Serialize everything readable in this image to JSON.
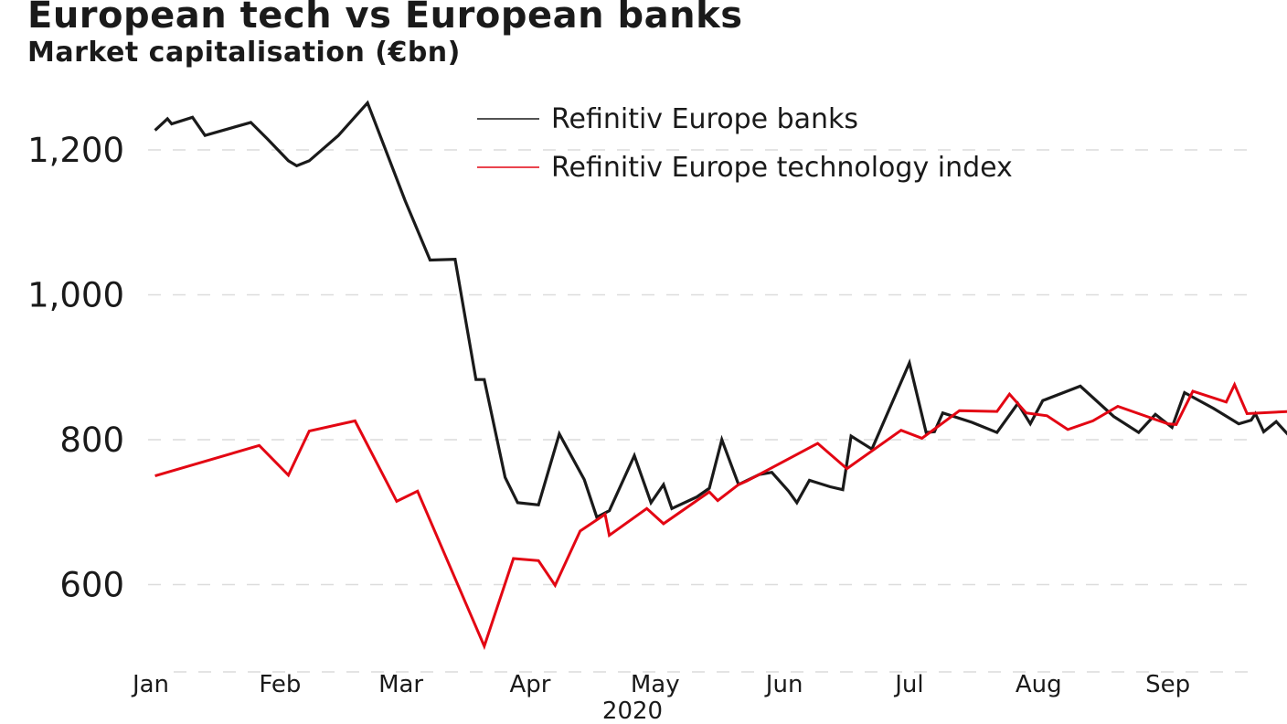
{
  "chart_data": {
    "type": "line",
    "title": "European tech vs European banks",
    "subtitle": "Market capitalisation (€bn)",
    "xlabel": "2020",
    "ylabel": "",
    "ylim": [
      480,
      1280
    ],
    "yticks": [
      {
        "value": 600,
        "label": "600"
      },
      {
        "value": 800,
        "label": "800"
      },
      {
        "value": 1000,
        "label": "1,000"
      },
      {
        "value": 1200,
        "label": "1,200"
      }
    ],
    "xlim": [
      0,
      264
    ],
    "xticks": [
      {
        "day": 0,
        "label": "Jan"
      },
      {
        "day": 31,
        "label": "Feb"
      },
      {
        "day": 60,
        "label": "Mar"
      },
      {
        "day": 91,
        "label": "Apr"
      },
      {
        "day": 121,
        "label": "May"
      },
      {
        "day": 152,
        "label": "Jun"
      },
      {
        "day": 182,
        "label": "Jul"
      },
      {
        "day": 213,
        "label": "Aug"
      },
      {
        "day": 244,
        "label": "Sep"
      }
    ],
    "grid": true,
    "legend_position": "top-right",
    "x_unit": "day of year 2020",
    "series": [
      {
        "name": "Refinitiv Europe banks",
        "color": "#1a1a1a",
        "points": [
          [
            1,
            1227
          ],
          [
            4,
            1243
          ],
          [
            5,
            1236
          ],
          [
            10,
            1245
          ],
          [
            13,
            1220
          ],
          [
            24,
            1238
          ],
          [
            28,
            1215
          ],
          [
            33,
            1185
          ],
          [
            35,
            1178
          ],
          [
            38,
            1185
          ],
          [
            45,
            1220
          ],
          [
            52,
            1265
          ],
          [
            61,
            1130
          ],
          [
            67,
            1048
          ],
          [
            73,
            1049
          ],
          [
            78,
            883
          ],
          [
            80,
            883
          ],
          [
            85,
            748
          ],
          [
            88,
            713
          ],
          [
            93,
            710
          ],
          [
            98,
            808
          ],
          [
            104,
            745
          ],
          [
            107,
            693
          ],
          [
            110,
            702
          ],
          [
            116,
            778
          ],
          [
            120,
            713
          ],
          [
            123,
            738
          ],
          [
            125,
            705
          ],
          [
            131,
            721
          ],
          [
            134,
            733
          ],
          [
            137,
            800
          ],
          [
            141,
            738
          ],
          [
            146,
            752
          ],
          [
            149,
            755
          ],
          [
            153,
            729
          ],
          [
            155,
            713
          ],
          [
            158,
            744
          ],
          [
            163,
            735
          ],
          [
            166,
            731
          ],
          [
            168,
            805
          ],
          [
            173,
            787
          ],
          [
            182,
            906
          ],
          [
            186,
            810
          ],
          [
            188,
            811
          ],
          [
            190,
            837
          ],
          [
            197,
            824
          ],
          [
            203,
            810
          ],
          [
            208,
            850
          ],
          [
            211,
            822
          ],
          [
            214,
            854
          ],
          [
            223,
            874
          ],
          [
            231,
            832
          ],
          [
            237,
            810
          ],
          [
            241,
            835
          ],
          [
            245,
            817
          ],
          [
            248,
            865
          ],
          [
            255,
            843
          ],
          [
            261,
            822
          ],
          [
            264,
            827
          ],
          [
            265,
            836
          ],
          [
            267,
            811
          ],
          [
            270,
            825
          ],
          [
            273,
            806
          ],
          [
            276,
            812
          ]
        ]
      },
      {
        "name": "Refinitiv Europe technology index",
        "color": "#e30613",
        "points": [
          [
            1,
            750
          ],
          [
            26,
            792
          ],
          [
            33,
            751
          ],
          [
            38,
            812
          ],
          [
            49,
            826
          ],
          [
            59,
            715
          ],
          [
            64,
            729
          ],
          [
            80,
            515
          ],
          [
            87,
            636
          ],
          [
            93,
            633
          ],
          [
            97,
            599
          ],
          [
            103,
            674
          ],
          [
            109,
            697
          ],
          [
            110,
            668
          ],
          [
            119,
            705
          ],
          [
            123,
            684
          ],
          [
            134,
            728
          ],
          [
            136,
            716
          ],
          [
            141,
            738
          ],
          [
            143,
            743
          ],
          [
            160,
            795
          ],
          [
            167,
            760
          ],
          [
            180,
            813
          ],
          [
            185,
            802
          ],
          [
            194,
            840
          ],
          [
            203,
            839
          ],
          [
            206,
            863
          ],
          [
            210,
            837
          ],
          [
            215,
            833
          ],
          [
            220,
            814
          ],
          [
            226,
            826
          ],
          [
            232,
            846
          ],
          [
            244,
            822
          ],
          [
            246,
            821
          ],
          [
            250,
            867
          ],
          [
            258,
            852
          ],
          [
            260,
            876
          ],
          [
            263,
            836
          ],
          [
            273,
            839
          ]
        ]
      }
    ]
  }
}
